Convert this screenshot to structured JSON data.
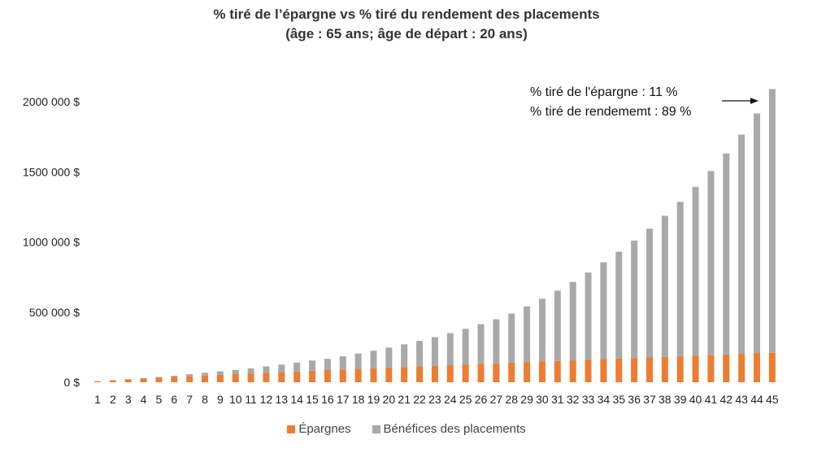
{
  "chart_data": {
    "type": "bar",
    "stacked": true,
    "title": "% tiré de l’épargne vs % tiré du rendement des placements",
    "subtitle": "(âge : 65 ans; âge de départ : 20 ans)",
    "xlabel": "",
    "ylabel": "",
    "ylim": [
      0,
      2000000
    ],
    "y_ticks": [
      {
        "value": 0,
        "label": "0 $"
      },
      {
        "value": 500000,
        "label": "500 000 $"
      },
      {
        "value": 1000000,
        "label": "1000 000 $"
      },
      {
        "value": 1500000,
        "label": "1500 000 $"
      },
      {
        "value": 2000000,
        "label": "2000 000 $"
      }
    ],
    "grid": false,
    "legend_position": "bottom",
    "categories": [
      "1",
      "2",
      "3",
      "4",
      "5",
      "6",
      "7",
      "8",
      "9",
      "10",
      "11",
      "12",
      "13",
      "14",
      "15",
      "16",
      "17",
      "18",
      "19",
      "20",
      "21",
      "22",
      "23",
      "24",
      "25",
      "26",
      "27",
      "28",
      "29",
      "30",
      "31",
      "32",
      "33",
      "34",
      "35",
      "36",
      "37",
      "38",
      "39",
      "40",
      "41",
      "42",
      "43",
      "44",
      "45"
    ],
    "series": [
      {
        "name": "Épargnes",
        "color": "#ED7D31",
        "values": [
          7000,
          14000,
          20000,
          26000,
          32000,
          38000,
          43000,
          48000,
          53000,
          58000,
          63000,
          68000,
          72000,
          77000,
          82000,
          87000,
          91000,
          96000,
          100000,
          105000,
          109000,
          114000,
          118000,
          122000,
          127000,
          131000,
          135000,
          140000,
          144000,
          148000,
          152000,
          156000,
          160000,
          165000,
          169000,
          173000,
          177000,
          181000,
          185000,
          189000,
          193000,
          198000,
          202000,
          206000,
          210000
        ]
      },
      {
        "name": "Bénéfices des placements",
        "color": "#A9A9A9",
        "values": [
          0,
          0,
          2000,
          4000,
          6000,
          8000,
          14000,
          20000,
          25000,
          30000,
          36000,
          45000,
          54000,
          63000,
          73000,
          80000,
          94000,
          109000,
          125000,
          142000,
          161000,
          181000,
          204000,
          228000,
          254000,
          283000,
          314000,
          350000,
          397000,
          447000,
          501000,
          559000,
          622000,
          690000,
          761000,
          837000,
          918000,
          1005000,
          1101000,
          1203000,
          1313000,
          1432000,
          1563000,
          1710000,
          1880000
        ]
      }
    ],
    "annotation": {
      "line1": "% tiré de l'épargne : 11 %",
      "line2": "% tiré de rendememt : 89 %",
      "arrow_to_category": "45"
    }
  }
}
